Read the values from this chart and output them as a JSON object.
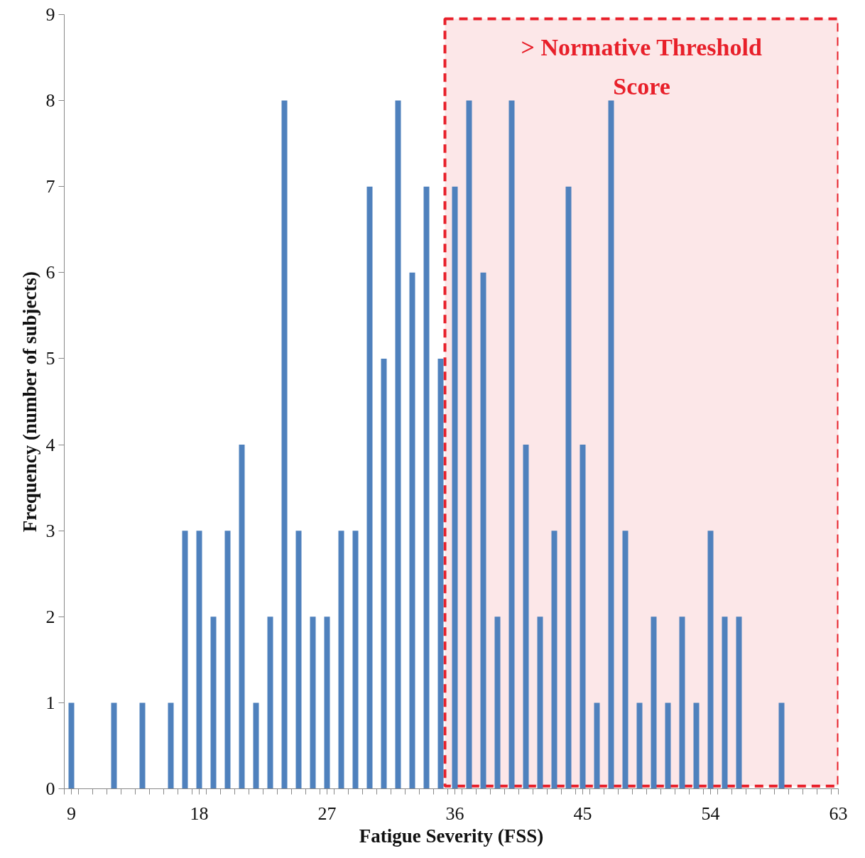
{
  "chart_data": {
    "type": "bar",
    "xlabel": "Fatigue Severity (FSS)",
    "ylabel": "Frequency (number of subjects)",
    "x": [
      9,
      12,
      14,
      16,
      17,
      18,
      19,
      20,
      21,
      22,
      23,
      24,
      25,
      26,
      27,
      28,
      29,
      30,
      31,
      32,
      33,
      34,
      35,
      36,
      37,
      38,
      39,
      40,
      41,
      42,
      43,
      44,
      45,
      46,
      47,
      48,
      49,
      50,
      51,
      52,
      53,
      54,
      55,
      56,
      59
    ],
    "values": [
      1,
      1,
      1,
      1,
      3,
      3,
      2,
      3,
      4,
      1,
      2,
      8,
      3,
      2,
      2,
      3,
      3,
      7,
      5,
      8,
      6,
      7,
      5,
      7,
      8,
      6,
      2,
      8,
      4,
      2,
      3,
      7,
      4,
      1,
      8,
      3,
      1,
      2,
      1,
      2,
      1,
      3,
      2,
      2,
      1
    ],
    "color": "#4f81bd",
    "xlim": [
      8.5,
      63
    ],
    "xticks": [
      9,
      18,
      27,
      36,
      45,
      54,
      63
    ],
    "ylim": [
      0,
      9
    ],
    "yticks": [
      0,
      1,
      2,
      3,
      4,
      5,
      6,
      7,
      8,
      9
    ],
    "bands": [
      {
        "axis": "x",
        "from": 35.3,
        "to": 63,
        "label": "> Normative Threshold Score",
        "color": "#e8202a"
      }
    ],
    "grid": false
  }
}
